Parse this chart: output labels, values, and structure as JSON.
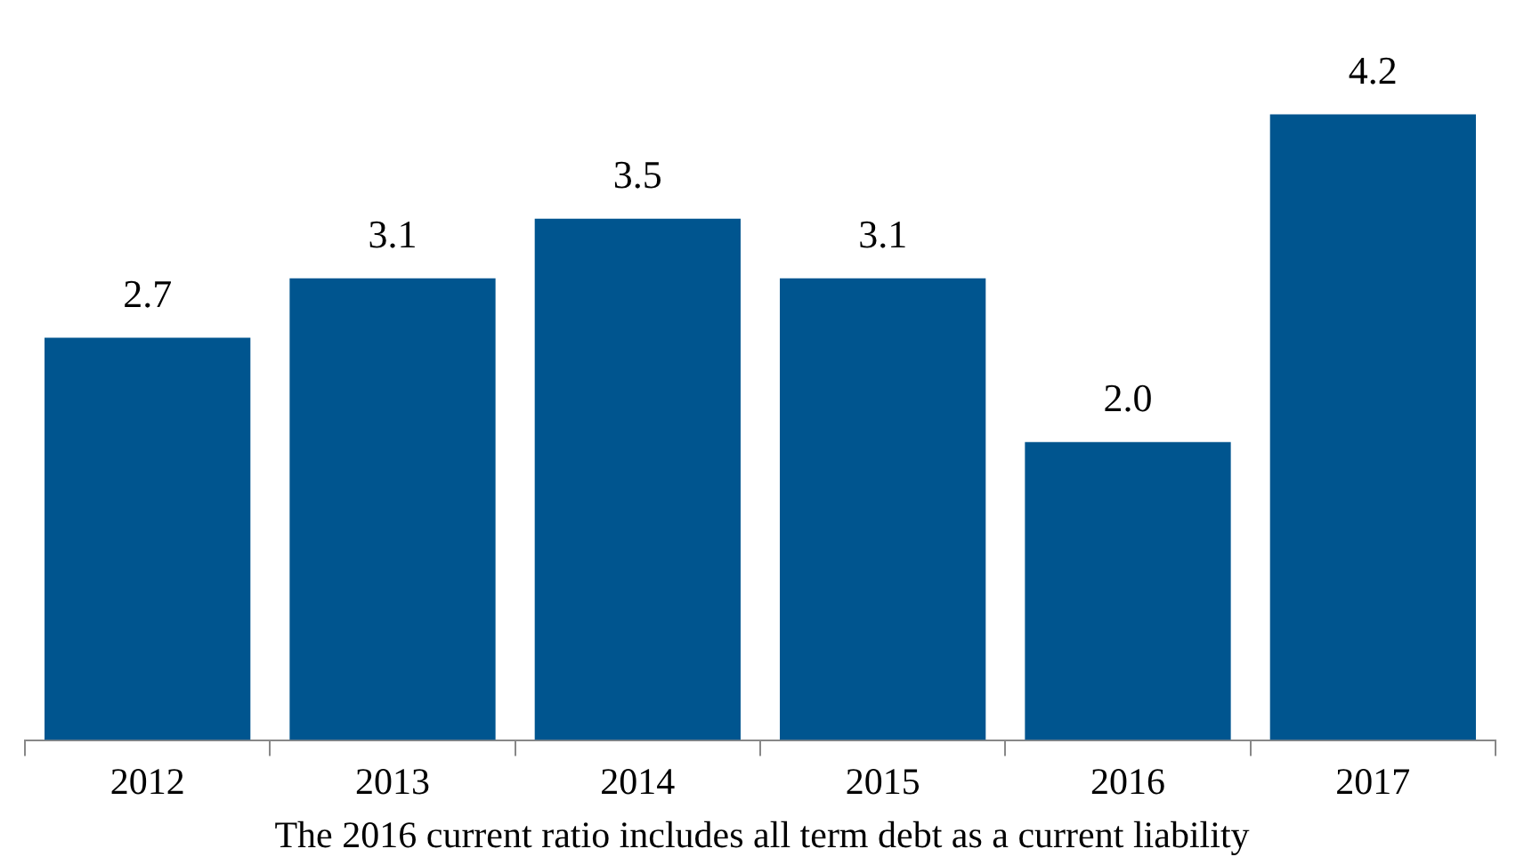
{
  "chart_data": {
    "type": "bar",
    "categories": [
      "2012",
      "2013",
      "2014",
      "2015",
      "2016",
      "2017"
    ],
    "values": [
      2.7,
      3.1,
      3.5,
      3.1,
      2.0,
      4.2
    ],
    "value_labels": [
      "2.7",
      "3.1",
      "3.5",
      "3.1",
      "2.0",
      "4.2"
    ],
    "color": "#00558f",
    "legend": false,
    "grid": false,
    "annotations": [
      "The 2016 current ratio includes all term debt as a current liability"
    ]
  }
}
